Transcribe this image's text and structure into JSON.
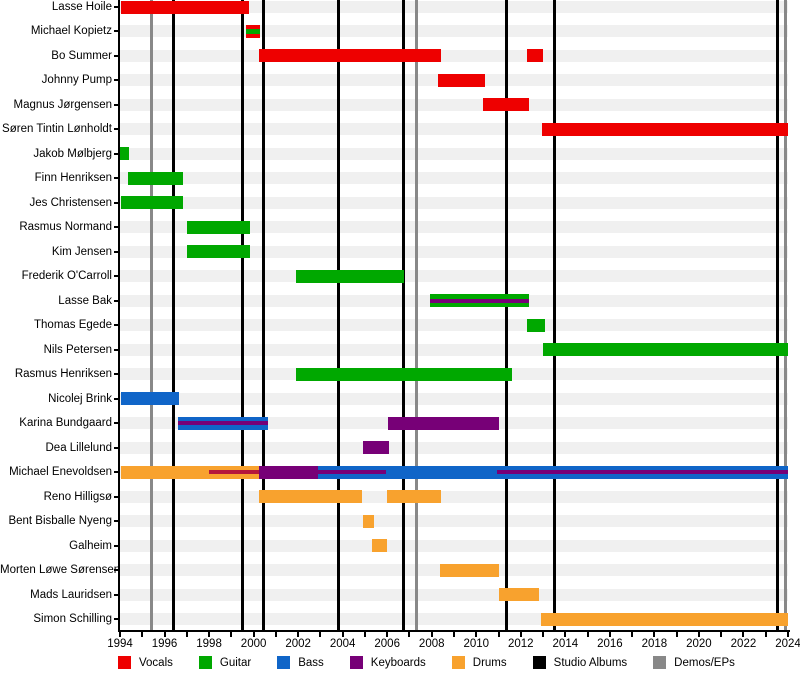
{
  "chart_data": {
    "type": "timeline",
    "title": "",
    "x_axis": {
      "min": 1994,
      "max": 2024,
      "label_step": 2,
      "minor_tick_step": 1,
      "tick_labels": [
        "1994",
        "1996",
        "1998",
        "2000",
        "2002",
        "2004",
        "2006",
        "2008",
        "2010",
        "2012",
        "2014",
        "2016",
        "2018",
        "2020",
        "2022",
        "2024"
      ]
    },
    "roles": {
      "vocals": "#ee0000",
      "guitar": "#00a800",
      "bass": "#1065c8",
      "keyboards": "#770077",
      "drums": "#f8a22e"
    },
    "event_lines": {
      "studio_albums": {
        "color": "#000000",
        "years": [
          1996.4,
          1999.5,
          2000.45,
          2003.8,
          2006.75,
          2011.35,
          2013.5,
          2023.55
        ]
      },
      "demos_eps": {
        "color": "#888888",
        "years": [
          1995.4,
          2007.3,
          2023.9
        ]
      }
    },
    "members": [
      {
        "name": "Lasse Hoile",
        "segments": [
          {
            "role": "vocals",
            "kind": "bar",
            "start": 1994.05,
            "end": 1999.8
          }
        ]
      },
      {
        "name": "Michael Kopietz",
        "segments": [
          {
            "role": "vocals",
            "kind": "bar",
            "start": 1999.65,
            "end": 2000.3
          },
          {
            "role": "guitar",
            "kind": "stripe",
            "h": 5,
            "start": 1999.65,
            "end": 2000.3
          }
        ]
      },
      {
        "name": "Bo Summer",
        "segments": [
          {
            "role": "vocals",
            "kind": "bar",
            "start": 2000.25,
            "end": 2008.4
          },
          {
            "role": "vocals",
            "kind": "bar",
            "start": 2012.3,
            "end": 2013.0
          }
        ]
      },
      {
        "name": "Johnny Pump",
        "segments": [
          {
            "role": "vocals",
            "kind": "bar",
            "start": 2008.3,
            "end": 2010.4
          }
        ]
      },
      {
        "name": "Magnus Jørgensen",
        "segments": [
          {
            "role": "vocals",
            "kind": "bar",
            "start": 2010.3,
            "end": 2012.35
          }
        ]
      },
      {
        "name": "Søren Tintin Lønholdt",
        "segments": [
          {
            "role": "vocals",
            "kind": "bar",
            "start": 2012.95,
            "end": 2024.0
          }
        ]
      },
      {
        "name": "Jakob Mølbjerg",
        "segments": [
          {
            "role": "guitar",
            "kind": "bar",
            "start": 1994.0,
            "end": 1994.4
          }
        ]
      },
      {
        "name": "Finn Henriksen",
        "segments": [
          {
            "role": "guitar",
            "kind": "bar",
            "start": 1994.35,
            "end": 1996.85
          }
        ]
      },
      {
        "name": "Jes Christensen",
        "segments": [
          {
            "role": "guitar",
            "kind": "bar",
            "start": 1994.05,
            "end": 1996.85
          }
        ]
      },
      {
        "name": "Rasmus Normand",
        "segments": [
          {
            "role": "guitar",
            "kind": "bar",
            "start": 1997.0,
            "end": 1999.85
          }
        ]
      },
      {
        "name": "Kim Jensen",
        "segments": [
          {
            "role": "guitar",
            "kind": "bar",
            "start": 1997.0,
            "end": 1999.85
          }
        ]
      },
      {
        "name": "Frederik O'Carroll",
        "segments": [
          {
            "role": "guitar",
            "kind": "bar",
            "start": 2001.9,
            "end": 2006.75
          }
        ]
      },
      {
        "name": "Lasse Bak",
        "segments": [
          {
            "role": "guitar",
            "kind": "bar",
            "start": 2007.9,
            "end": 2012.35
          },
          {
            "role": "keyboards",
            "kind": "stripe",
            "start": 2007.9,
            "end": 2012.35
          }
        ]
      },
      {
        "name": "Thomas Egede",
        "segments": [
          {
            "role": "guitar",
            "kind": "bar",
            "start": 2012.3,
            "end": 2013.1
          }
        ]
      },
      {
        "name": "Nils Petersen",
        "segments": [
          {
            "role": "guitar",
            "kind": "bar",
            "start": 2013.0,
            "end": 2024.0
          }
        ]
      },
      {
        "name": "Rasmus Henriksen",
        "segments": [
          {
            "role": "guitar",
            "kind": "bar",
            "start": 2001.9,
            "end": 2011.6
          }
        ]
      },
      {
        "name": "Nicolej Brink",
        "segments": [
          {
            "role": "bass",
            "kind": "bar",
            "start": 1994.05,
            "end": 1996.65
          }
        ]
      },
      {
        "name": "Karina Bundgaard",
        "segments": [
          {
            "role": "bass",
            "kind": "bar",
            "start": 1996.6,
            "end": 2000.65
          },
          {
            "role": "keyboards",
            "kind": "stripe",
            "start": 1996.6,
            "end": 2000.65
          },
          {
            "role": "keyboards",
            "kind": "bar",
            "start": 2006.05,
            "end": 2011.0
          }
        ]
      },
      {
        "name": "Dea Lillelund",
        "segments": [
          {
            "role": "keyboards",
            "kind": "bar",
            "start": 2004.9,
            "end": 2006.1
          }
        ]
      },
      {
        "name": "Michael Enevoldsen",
        "segments": [
          {
            "role": "drums",
            "kind": "bar",
            "start": 1994.05,
            "end": 2000.25
          },
          {
            "role": "vocals",
            "kind": "stripe",
            "color": "#b5173b",
            "start": 1998.0,
            "end": 2000.25
          },
          {
            "role": "keyboards",
            "kind": "bar",
            "start": 2000.25,
            "end": 2002.9
          },
          {
            "role": "bass",
            "kind": "bar",
            "start": 2002.9,
            "end": 2024.0
          },
          {
            "role": "keyboards",
            "kind": "stripe",
            "start": 2002.9,
            "end": 2005.95
          },
          {
            "role": "keyboards",
            "kind": "stripe",
            "start": 2010.95,
            "end": 2024.0
          }
        ]
      },
      {
        "name": "Reno Hilligsø",
        "segments": [
          {
            "role": "drums",
            "kind": "bar",
            "start": 2000.25,
            "end": 2004.85
          },
          {
            "role": "drums",
            "kind": "bar",
            "start": 2006.0,
            "end": 2008.4
          }
        ]
      },
      {
        "name": "Bent Bisballe Nyeng",
        "segments": [
          {
            "role": "drums",
            "kind": "bar",
            "start": 2004.9,
            "end": 2005.4
          }
        ]
      },
      {
        "name": "Galheim",
        "segments": [
          {
            "role": "drums",
            "kind": "bar",
            "start": 2005.3,
            "end": 2006.0
          }
        ]
      },
      {
        "name": "Morten Løwe Sørensen",
        "segments": [
          {
            "role": "drums",
            "kind": "bar",
            "start": 2008.35,
            "end": 2011.0
          }
        ]
      },
      {
        "name": "Mads Lauridsen",
        "segments": [
          {
            "role": "drums",
            "kind": "bar",
            "start": 2011.0,
            "end": 2012.8
          }
        ]
      },
      {
        "name": "Simon Schilling",
        "segments": [
          {
            "role": "drums",
            "kind": "bar",
            "start": 2012.9,
            "end": 2024.0
          }
        ]
      }
    ],
    "legend": [
      {
        "label": "Vocals",
        "color": "#ee0000"
      },
      {
        "label": "Guitar",
        "color": "#00a800"
      },
      {
        "label": "Bass",
        "color": "#1065c8"
      },
      {
        "label": "Keyboards",
        "color": "#770077"
      },
      {
        "label": "Drums",
        "color": "#f8a22e"
      },
      {
        "label": "Studio Albums",
        "color": "#000000"
      },
      {
        "label": "Demos/EPs",
        "color": "#888888"
      }
    ],
    "layout": {
      "grid": "row tracks light gray",
      "legend_position": "bottom",
      "event_lines_full_height": true
    }
  }
}
